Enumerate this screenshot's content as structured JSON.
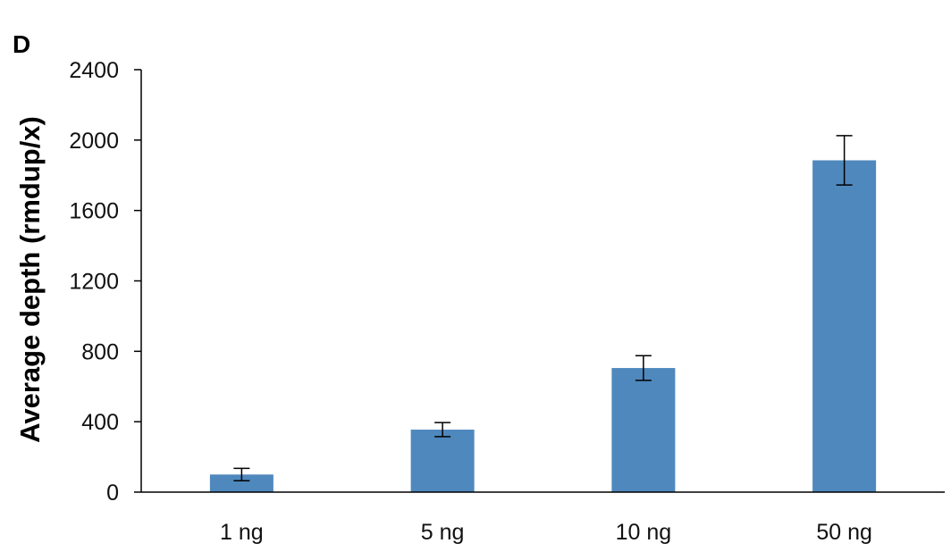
{
  "panel_label": "D",
  "colors": {
    "bar": "#4f88bd",
    "axis": "#000000",
    "error_bar": "#000000"
  },
  "chart_data": {
    "type": "bar",
    "title": "",
    "xlabel": "",
    "ylabel": "Average depth (rmdup/x)",
    "categories": [
      "1 ng",
      "5 ng",
      "10 ng",
      "50 ng"
    ],
    "values": [
      100,
      355,
      705,
      1885
    ],
    "errors": [
      35,
      40,
      70,
      140
    ],
    "ylim": [
      0,
      2400
    ],
    "yticks": [
      0,
      400,
      800,
      1200,
      1600,
      2000,
      2400
    ],
    "ytick_labels": [
      "0",
      "400",
      "800",
      "1200",
      "1600",
      "2000",
      "2400"
    ],
    "grid": false,
    "legend": "none"
  }
}
